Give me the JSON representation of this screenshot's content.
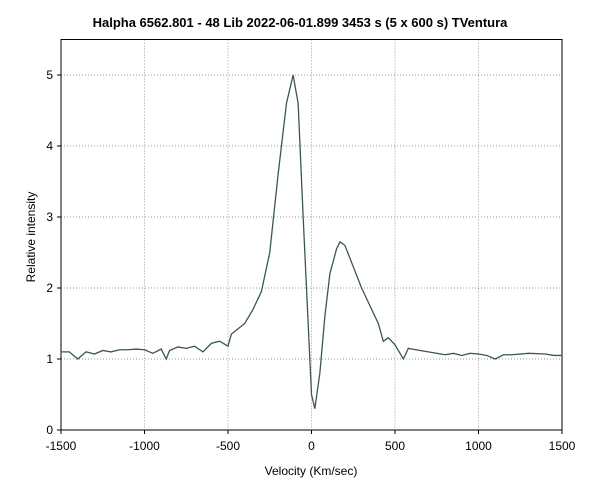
{
  "chart_data": {
    "type": "line",
    "title": "Halpha 6562.801 - 48 Lib   2022-06-01.899   3453 s (5 x 600 s)   TVentura",
    "x_label": "Velocity (Km/sec)",
    "y_label": "Relative intensity",
    "xlim": [
      -1500,
      1500
    ],
    "ylim": [
      0,
      5.5
    ],
    "xticks": [
      -1500,
      -1000,
      -500,
      0,
      500,
      1000,
      1500
    ],
    "yticks": [
      0,
      1,
      2,
      3,
      4,
      5
    ],
    "grid": true,
    "series": [
      {
        "name": "48 Lib",
        "color": "#3b5656",
        "x": [
          -1500,
          -1450,
          -1400,
          -1350,
          -1300,
          -1250,
          -1200,
          -1150,
          -1100,
          -1050,
          -1000,
          -950,
          -900,
          -870,
          -850,
          -800,
          -750,
          -700,
          -650,
          -600,
          -550,
          -500,
          -480,
          -400,
          -350,
          -300,
          -250,
          -200,
          -150,
          -110,
          -80,
          -50,
          -20,
          0,
          20,
          50,
          80,
          110,
          150,
          170,
          200,
          250,
          300,
          350,
          400,
          430,
          460,
          500,
          550,
          580,
          650,
          700,
          800,
          850,
          900,
          950,
          1000,
          1050,
          1100,
          1150,
          1200,
          1300,
          1400,
          1450,
          1500
        ],
        "values": [
          1.1,
          1.1,
          1.0,
          1.1,
          1.07,
          1.12,
          1.1,
          1.13,
          1.13,
          1.14,
          1.13,
          1.08,
          1.14,
          1.0,
          1.12,
          1.17,
          1.15,
          1.18,
          1.1,
          1.22,
          1.25,
          1.18,
          1.35,
          1.5,
          1.7,
          1.95,
          2.5,
          3.6,
          4.6,
          5.0,
          4.6,
          3.0,
          1.5,
          0.5,
          0.3,
          0.8,
          1.6,
          2.2,
          2.55,
          2.65,
          2.6,
          2.3,
          2.0,
          1.75,
          1.5,
          1.25,
          1.3,
          1.2,
          1.0,
          1.15,
          1.12,
          1.1,
          1.06,
          1.08,
          1.05,
          1.08,
          1.07,
          1.05,
          1.0,
          1.06,
          1.06,
          1.08,
          1.07,
          1.05,
          1.05
        ]
      }
    ]
  }
}
